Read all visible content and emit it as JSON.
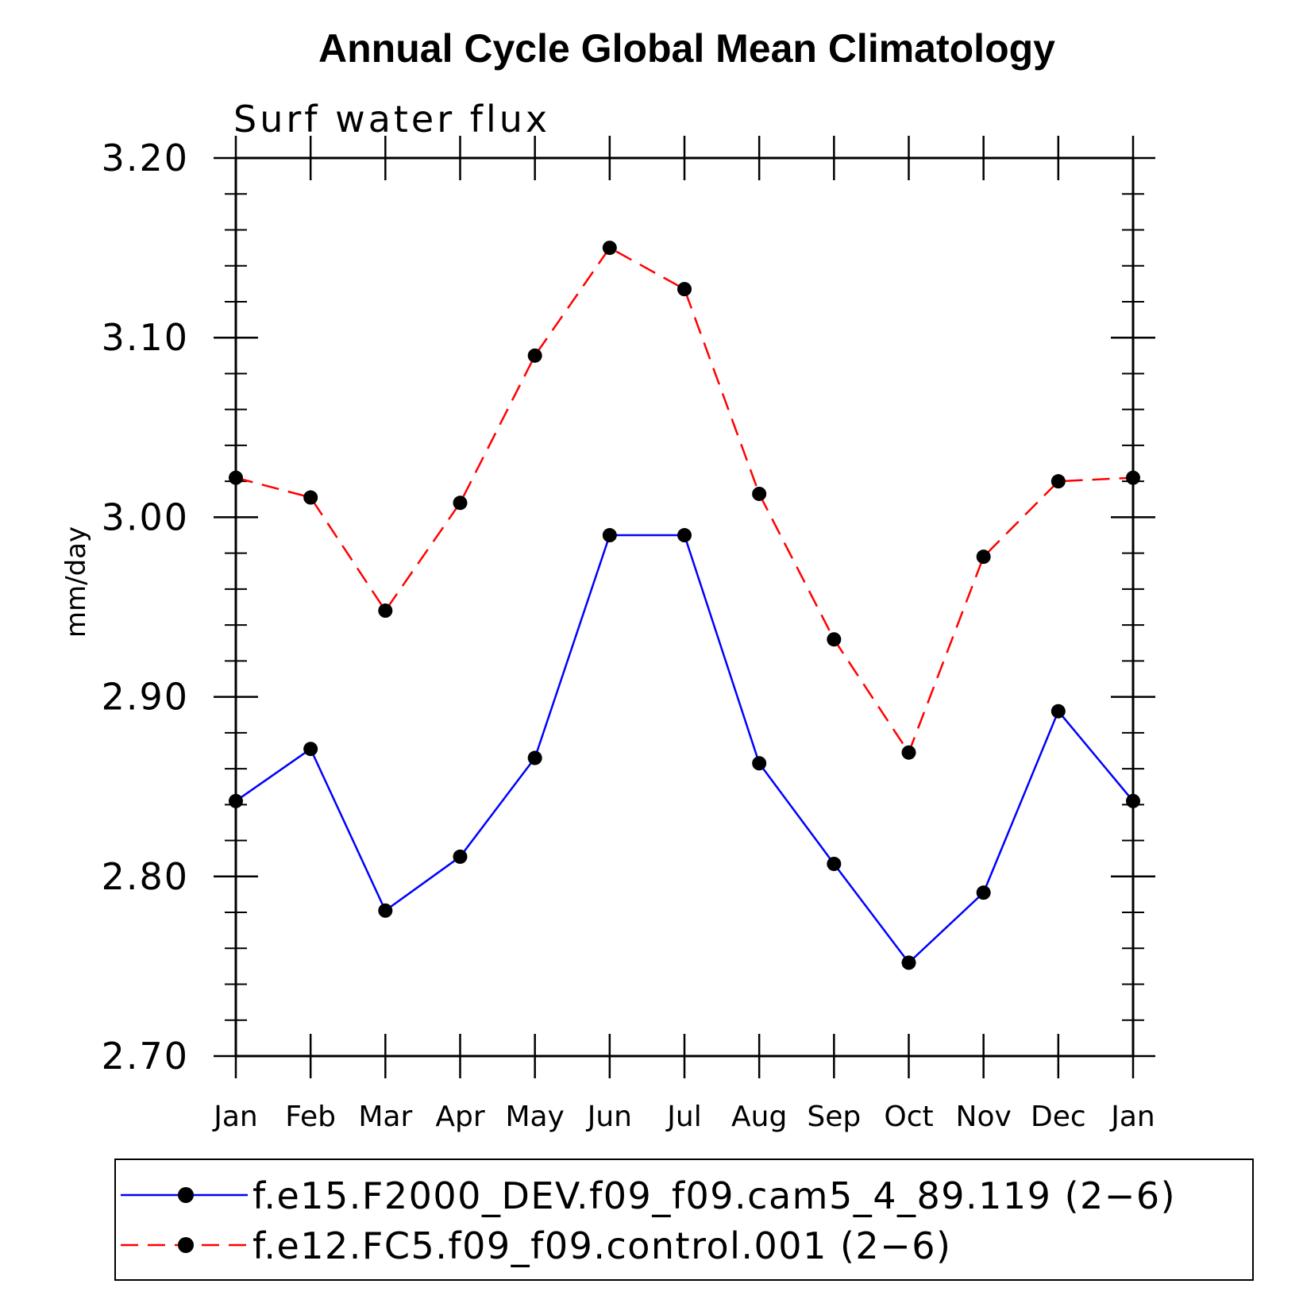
{
  "chart_data": {
    "type": "line",
    "title": "Annual Cycle Global Mean Climatology",
    "subtitle": "Surf water flux",
    "ylabel": "mm/day",
    "categories": [
      "Jan",
      "Feb",
      "Mar",
      "Apr",
      "May",
      "Jun",
      "Jul",
      "Aug",
      "Sep",
      "Oct",
      "Nov",
      "Dec",
      "Jan"
    ],
    "ylim": [
      2.7,
      3.2
    ],
    "yticks": [
      "3.20",
      "3.10",
      "3.00",
      "2.90",
      "2.80",
      "2.70"
    ],
    "ytick_values": [
      3.2,
      3.1,
      3.0,
      2.9,
      2.8,
      2.7
    ],
    "y_minor_step": 0.02,
    "grid": false,
    "legend_position": "bottom",
    "series": [
      {
        "name": "f.e15.F2000_DEV.f09_f09.cam5_4_89.119 (2−6)",
        "color": "#0000ff",
        "style": "solid",
        "marker": "filled-circle",
        "values": [
          2.842,
          2.871,
          2.781,
          2.811,
          2.866,
          2.99,
          2.99,
          2.863,
          2.807,
          2.752,
          2.791,
          2.892,
          2.842
        ]
      },
      {
        "name": "f.e12.FC5.f09_f09.control.001 (2−6)",
        "color": "#ff0000",
        "style": "dashed",
        "marker": "filled-circle",
        "values": [
          3.022,
          3.011,
          2.948,
          3.008,
          3.09,
          3.15,
          3.127,
          3.013,
          2.932,
          2.869,
          2.978,
          3.02,
          3.022
        ]
      }
    ]
  }
}
